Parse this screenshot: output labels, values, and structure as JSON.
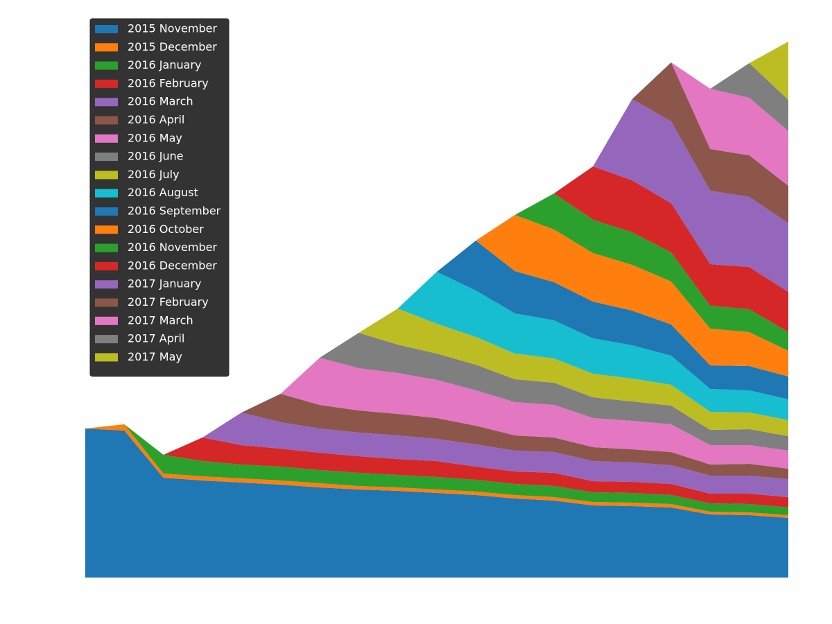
{
  "chart_data": {
    "type": "stackplot",
    "x": [
      0,
      1,
      2,
      3,
      4,
      5,
      6,
      7,
      8,
      9,
      10,
      11,
      12,
      13,
      14,
      15,
      16,
      17,
      18
    ],
    "xlim": [
      0,
      18
    ],
    "ylim": [
      0,
      800
    ],
    "legend": "upper left",
    "series": [
      {
        "name": "2015 November",
        "color": "#1f77b4",
        "values": [
          215,
          212,
          144,
          140,
          137,
          134,
          130,
          127,
          125,
          122,
          119,
          114,
          111,
          104,
          103,
          101,
          91,
          90,
          86
        ]
      },
      {
        "name": "2015 December",
        "color": "#ff7f0e",
        "values": [
          0,
          9,
          6,
          6,
          6,
          6,
          6,
          5,
          5,
          5,
          5,
          5,
          5,
          5,
          5,
          5,
          4,
          4,
          4
        ]
      },
      {
        "name": "2016 January",
        "color": "#2ca02c",
        "values": [
          0,
          0,
          27,
          22,
          20,
          20,
          19,
          19,
          18,
          18,
          17,
          16,
          16,
          14,
          14,
          13,
          12,
          12,
          11
        ]
      },
      {
        "name": "2016 February",
        "color": "#d62728",
        "values": [
          0,
          0,
          0,
          34,
          28,
          26,
          25,
          24,
          23,
          23,
          19,
          18,
          19,
          16,
          16,
          16,
          14,
          15,
          15
        ]
      },
      {
        "name": "2016 March",
        "color": "#9467bd",
        "values": [
          0,
          0,
          0,
          0,
          47,
          38,
          35,
          34,
          34,
          32,
          32,
          30,
          30,
          29,
          28,
          27,
          26,
          26,
          26
        ]
      },
      {
        "name": "2016 April",
        "color": "#8c564b",
        "values": [
          0,
          0,
          0,
          0,
          0,
          41,
          34,
          32,
          31,
          30,
          27,
          22,
          21,
          20,
          19,
          19,
          16,
          17,
          15
        ]
      },
      {
        "name": "2016 May",
        "color": "#e377c2",
        "values": [
          0,
          0,
          0,
          0,
          0,
          0,
          68,
          61,
          59,
          55,
          51,
          48,
          47,
          42,
          41,
          40,
          28,
          27,
          26
        ]
      },
      {
        "name": "2016 June",
        "color": "#7f7f7f",
        "values": [
          0,
          0,
          0,
          0,
          0,
          0,
          0,
          51,
          41,
          38,
          37,
          33,
          32,
          30,
          28,
          27,
          22,
          23,
          21
        ]
      },
      {
        "name": "2016 July",
        "color": "#bcbd22",
        "values": [
          0,
          0,
          0,
          0,
          0,
          0,
          0,
          0,
          52,
          43,
          40,
          37,
          35,
          34,
          33,
          30,
          26,
          24,
          23
        ]
      },
      {
        "name": "2016 August",
        "color": "#17becf",
        "values": [
          0,
          0,
          0,
          0,
          0,
          0,
          0,
          0,
          0,
          75,
          67,
          58,
          55,
          51,
          48,
          42,
          33,
          32,
          30
        ]
      },
      {
        "name": "2016 September",
        "color": "#1f77b4",
        "values": [
          0,
          0,
          0,
          0,
          0,
          0,
          0,
          0,
          0,
          0,
          72,
          61,
          55,
          53,
          50,
          45,
          34,
          35,
          33
        ]
      },
      {
        "name": "2016 October",
        "color": "#ff7f0e",
        "values": [
          0,
          0,
          0,
          0,
          0,
          0,
          0,
          0,
          0,
          0,
          0,
          81,
          76,
          70,
          66,
          62,
          53,
          49,
          37
        ]
      },
      {
        "name": "2016 November",
        "color": "#2ca02c",
        "values": [
          0,
          0,
          0,
          0,
          0,
          0,
          0,
          0,
          0,
          0,
          0,
          0,
          52,
          48,
          47,
          42,
          33,
          33,
          27
        ]
      },
      {
        "name": "2016 December",
        "color": "#d62728",
        "values": [
          0,
          0,
          0,
          0,
          0,
          0,
          0,
          0,
          0,
          0,
          0,
          0,
          0,
          77,
          75,
          71,
          60,
          61,
          58
        ]
      },
      {
        "name": "2017 January",
        "color": "#9467bd",
        "values": [
          0,
          0,
          0,
          0,
          0,
          0,
          0,
          0,
          0,
          0,
          0,
          0,
          0,
          0,
          117,
          118,
          106,
          101,
          99
        ]
      },
      {
        "name": "2017 February",
        "color": "#8c564b",
        "values": [
          0,
          0,
          0,
          0,
          0,
          0,
          0,
          0,
          0,
          0,
          0,
          0,
          0,
          0,
          0,
          85,
          60,
          60,
          54
        ]
      },
      {
        "name": "2017 March",
        "color": "#e377c2",
        "values": [
          0,
          0,
          0,
          0,
          0,
          0,
          0,
          0,
          0,
          0,
          0,
          0,
          0,
          0,
          0,
          0,
          87,
          83,
          79
        ]
      },
      {
        "name": "2017 April",
        "color": "#7f7f7f",
        "values": [
          0,
          0,
          0,
          0,
          0,
          0,
          0,
          0,
          0,
          0,
          0,
          0,
          0,
          0,
          0,
          0,
          0,
          50,
          45
        ]
      },
      {
        "name": "2017 May",
        "color": "#bcbd22",
        "values": [
          0,
          0,
          0,
          0,
          0,
          0,
          0,
          0,
          0,
          0,
          0,
          0,
          0,
          0,
          0,
          0,
          0,
          0,
          84
        ]
      }
    ]
  }
}
